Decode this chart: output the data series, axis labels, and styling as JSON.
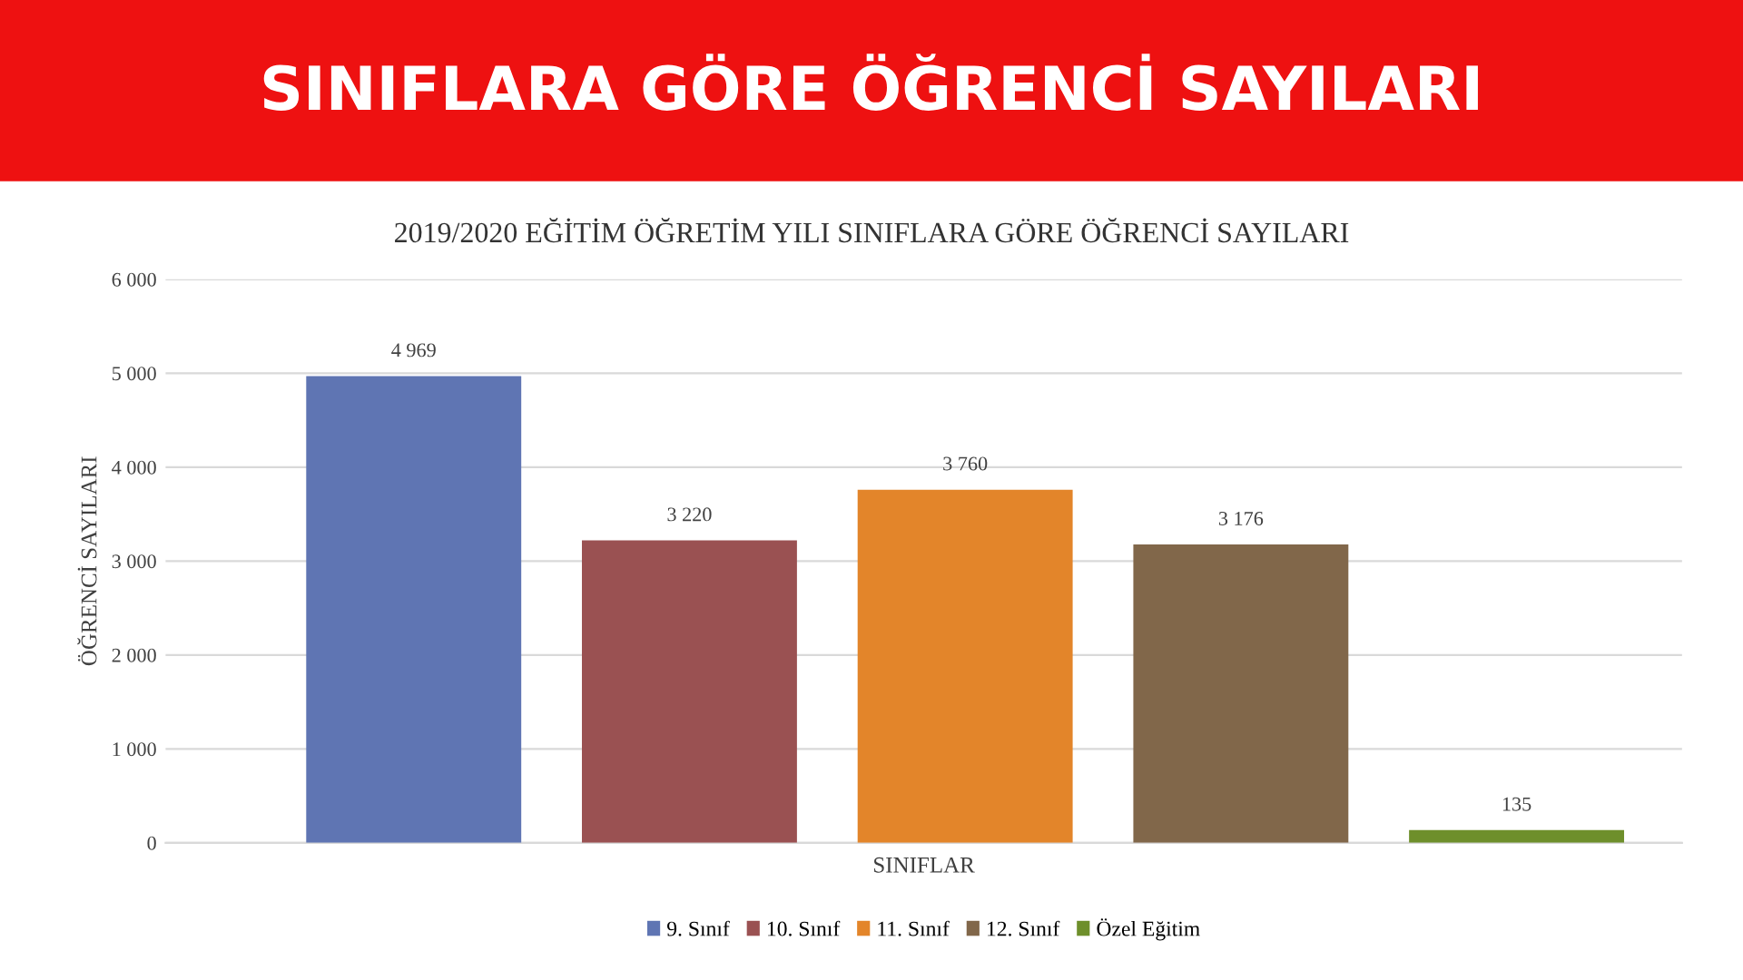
{
  "chart_data": {
    "type": "bar",
    "title": "SINIFLARA GÖRE ÖĞRENCİ SAYILARI",
    "subtitle": "2019/2020 EĞİTİM ÖĞRETİM YILI SINIFLARA GÖRE ÖĞRENCİ SAYILARI",
    "xlabel": "SINIFLAR",
    "ylabel": "ÖĞRENCİ SAYILARI",
    "categories": [
      null,
      null,
      null,
      null,
      null
    ],
    "series": [
      {
        "name": "9. Sınıf",
        "color": "#5f75b3",
        "values": [
          4969,
          null,
          null,
          null,
          null
        ],
        "value_labels": [
          "4 969",
          null,
          null,
          null,
          null
        ]
      },
      {
        "name": "10. Sınıf",
        "color": "#9a5152",
        "values": [
          null,
          3220,
          null,
          null,
          null
        ],
        "value_labels": [
          null,
          "3 220",
          null,
          null,
          null
        ]
      },
      {
        "name": "11. Sınıf",
        "color": "#e3852a",
        "values": [
          null,
          null,
          3760,
          null,
          null
        ],
        "value_labels": [
          null,
          null,
          "3 760",
          null,
          null
        ]
      },
      {
        "name": "12. Sınıf",
        "color": "#81674a",
        "values": [
          null,
          null,
          null,
          3176,
          null
        ],
        "value_labels": [
          null,
          null,
          null,
          "3 176",
          null
        ]
      },
      {
        "name": "Özel Eğitim",
        "color": "#6e8f2b",
        "values": [
          null,
          null,
          null,
          null,
          135
        ],
        "value_labels": [
          null,
          null,
          null,
          null,
          "135"
        ]
      }
    ],
    "ylim": [
      0,
      6000
    ],
    "yticks": [
      {
        "value": 0,
        "label": "0"
      },
      {
        "value": 1000,
        "label": "1 000"
      },
      {
        "value": 2000,
        "label": "2 000"
      },
      {
        "value": 3000,
        "label": "3 000"
      },
      {
        "value": 4000,
        "label": "4 000"
      },
      {
        "value": 5000,
        "label": "5 000"
      },
      {
        "value": 6000,
        "label": "6 000"
      }
    ],
    "grid": "y",
    "legend": "bottom"
  }
}
